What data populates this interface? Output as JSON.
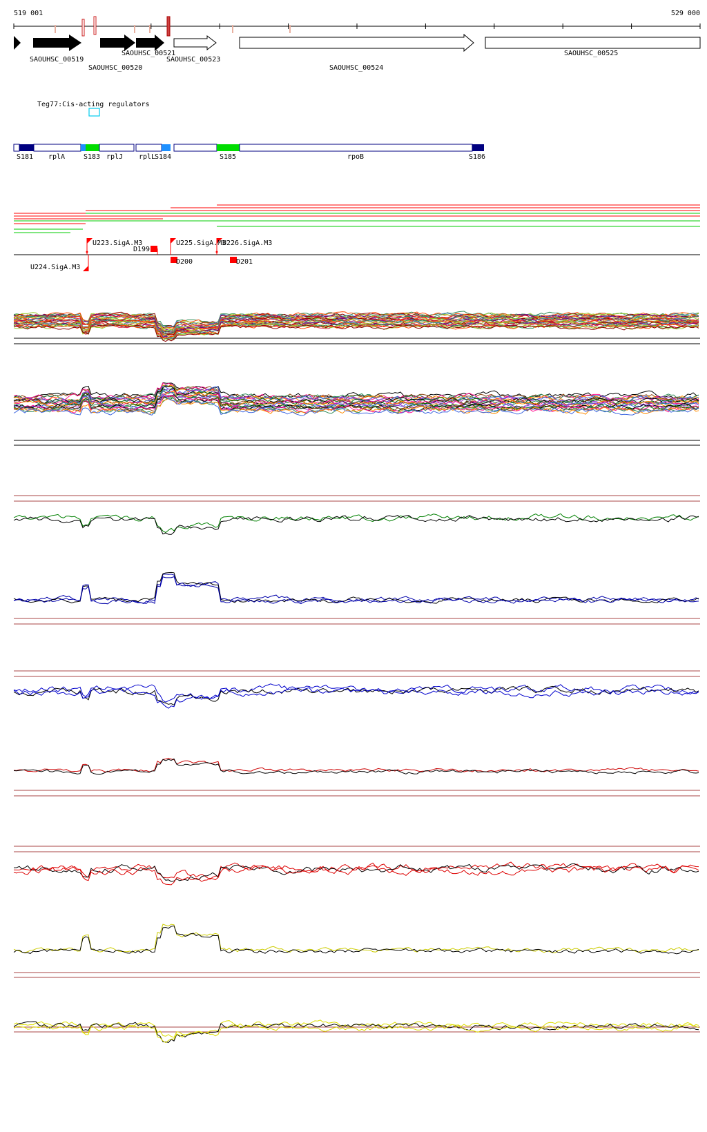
{
  "coords": {
    "start_label": "519 001",
    "end_label": "529 000"
  },
  "genes": [
    {
      "label": "SAOUHSC_00519",
      "filled": true
    },
    {
      "label": "SAOUHSC_00520",
      "filled": true
    },
    {
      "label": "SAOUHSC_00521",
      "filled": true
    },
    {
      "label": "SAOUHSC_00523",
      "filled": false
    },
    {
      "label": "SAOUHSC_00524",
      "filled": false
    },
    {
      "label": "SAOUHSC_00525",
      "filled": false
    }
  ],
  "regulator": {
    "label": "Teg77:Cis-acting regulators"
  },
  "segments": {
    "labels": [
      "S181",
      "rplA",
      "S183",
      "rplJ",
      "rplL",
      "S184",
      "S185",
      "rpoB",
      "S186"
    ]
  },
  "tus": {
    "up": [
      "U223.SigA.M3",
      "U225.SigA.M3",
      "U226.SigA.M3"
    ],
    "down_label": "U224.SigA.M3",
    "d_labels": [
      "D199",
      "D200",
      "D201"
    ]
  },
  "colors": {
    "red": "#ff0000",
    "green": "#00cc00",
    "blue": "#0000ff",
    "navy": "#000080",
    "lightblue": "#1e90ff",
    "yellow": "#dddd00",
    "darkgreen": "#008000",
    "maroon": "#aa4444"
  },
  "tracks": [
    {
      "name": "multi-condition-profile-a",
      "colors": [
        "#2e8b57",
        "#ff4500",
        "#9acd32",
        "#8b0000",
        "#4682b4",
        "#800080",
        "#daa520",
        "#dc143c"
      ]
    },
    {
      "name": "multi-condition-profile-b",
      "colors": [
        "#000000",
        "#8b4513",
        "#ff1493",
        "#2e8b57",
        "#ff8c00",
        "#4169e1",
        "#9932cc",
        "#006400"
      ]
    },
    {
      "name": "green-profile",
      "colors": [
        "#008000",
        "#000000"
      ]
    },
    {
      "name": "blue-profile",
      "colors": [
        "#0000aa",
        "#000000"
      ]
    },
    {
      "name": "blue-profile-2",
      "colors": [
        "#0000cc",
        "#000000"
      ]
    },
    {
      "name": "red-profile",
      "colors": [
        "#cc0000",
        "#000000"
      ]
    },
    {
      "name": "red-profile-2",
      "colors": [
        "#dd0000",
        "#000000"
      ]
    },
    {
      "name": "yellow-profile",
      "colors": [
        "#cccc00",
        "#000000"
      ]
    },
    {
      "name": "yellow-profile-2",
      "colors": [
        "#dddd00",
        "#000000"
      ]
    }
  ]
}
